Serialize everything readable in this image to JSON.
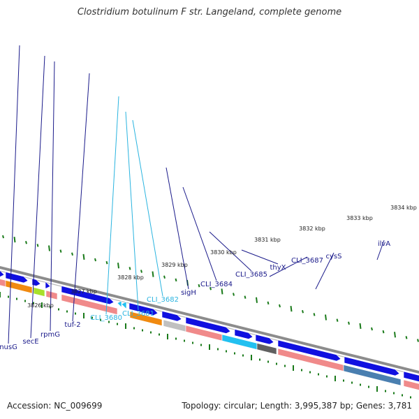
{
  "title": "Clostridium botulinum F str. Langeland, complete genome",
  "footer": {
    "accession": "Accession: NC_009699",
    "summary": "Topology: circular; Length: 3,995,387 bp; Genes: 3,781"
  },
  "colors": {
    "background": "#ffffff",
    "backbone": "#8c8c8c",
    "forward_cds": "#1010e0",
    "reverse_cds": "#f08a8a",
    "highlight_cyan": "#22c0f0",
    "highlight_orange": "#f08a10",
    "highlight_green": "#a8e02a",
    "highlight_steelblue": "#4a7fb0",
    "highlight_grey": "#c0c0c0",
    "highlight_darkgrey": "#606060",
    "tick_green": "#1a7a1a",
    "label_navy": "#1a1a8a",
    "label_cyan": "#2ab4e0"
  },
  "scale": {
    "unit": "kbp",
    "ticks": [
      {
        "label": "3826 kbp"
      },
      {
        "label": "3827 kbp"
      },
      {
        "label": "3828 kbp"
      },
      {
        "label": "3829 kbp"
      },
      {
        "label": "3830 kbp"
      },
      {
        "label": "3831 kbp"
      },
      {
        "label": "3832 kbp"
      },
      {
        "label": "3833 kbp"
      },
      {
        "label": "3834 kbp"
      }
    ]
  },
  "genes": [
    {
      "name": "nusG",
      "color": "label_navy"
    },
    {
      "name": "secE",
      "color": "label_navy"
    },
    {
      "name": "rpmG",
      "color": "label_navy"
    },
    {
      "name": "tuf-2",
      "color": "label_navy"
    },
    {
      "name": "CLI_3680",
      "color": "label_cyan"
    },
    {
      "name": "CLI_3681",
      "color": "label_cyan"
    },
    {
      "name": "CLI_3682",
      "color": "label_cyan"
    },
    {
      "name": "sigH",
      "color": "label_navy"
    },
    {
      "name": "CLI_3684",
      "color": "label_navy"
    },
    {
      "name": "CLI_3685",
      "color": "label_navy"
    },
    {
      "name": "thyX",
      "color": "label_navy"
    },
    {
      "name": "CLI_3687",
      "color": "label_navy"
    },
    {
      "name": "cysS",
      "color": "label_navy"
    },
    {
      "name": "ilvA",
      "color": "label_navy"
    }
  ]
}
